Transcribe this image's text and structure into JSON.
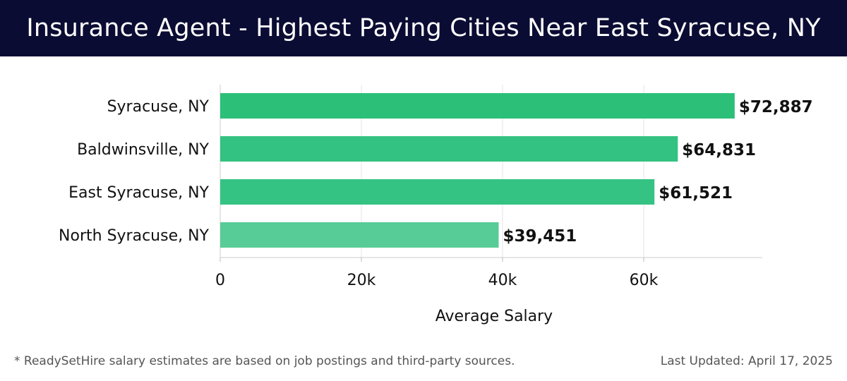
{
  "header": {
    "title": "Insurance Agent - Highest Paying Cities Near East Syracuse, NY"
  },
  "chart_data": {
    "type": "bar",
    "orientation": "horizontal",
    "title": "Insurance Agent - Highest Paying Cities Near East Syracuse, NY",
    "xlabel": "Average Salary",
    "ylabel": "",
    "xlim": [
      0,
      76800
    ],
    "xticks": [
      0,
      20000,
      40000,
      60000
    ],
    "xtick_labels": [
      "0",
      "20k",
      "40k",
      "60k"
    ],
    "grid": true,
    "categories": [
      "Syracuse, NY",
      "Baldwinsville, NY",
      "East Syracuse, NY",
      "North Syracuse, NY"
    ],
    "values": [
      72887,
      64831,
      61521,
      39451
    ],
    "value_labels": [
      "$72,887",
      "$64,831",
      "$61,521",
      "$39,451"
    ],
    "bar_colors": [
      "#2bbf78",
      "#33c281",
      "#35c384",
      "#58cc97"
    ]
  },
  "footer": {
    "note": "* ReadySetHire salary estimates are based on job postings and third-party sources.",
    "updated": "Last Updated: April 17, 2025"
  }
}
